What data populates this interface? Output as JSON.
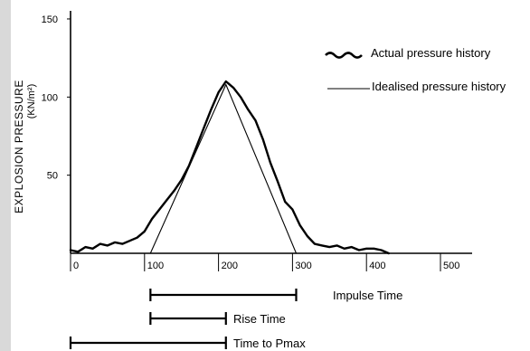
{
  "chart_data": {
    "type": "line",
    "title": "",
    "xlabel": "",
    "ylabel": "EXPLOSION PRESSURE",
    "yunit": "(KN/m²)",
    "xlim": [
      0,
      550
    ],
    "ylim": [
      0,
      150
    ],
    "x_ticks": [
      "0",
      "100",
      "200",
      "300",
      "400",
      "500"
    ],
    "x_tick_values": [
      0,
      100,
      200,
      300,
      400,
      500
    ],
    "y_ticks": [
      "50",
      "100",
      "150"
    ],
    "y_tick_values": [
      50,
      100,
      150
    ],
    "grid": false,
    "legend": "top-right",
    "series": [
      {
        "name": "Actual pressure history",
        "style": "wavy-thick",
        "x": [
          0,
          10,
          20,
          30,
          40,
          50,
          60,
          70,
          80,
          90,
          100,
          110,
          120,
          130,
          140,
          150,
          160,
          170,
          180,
          190,
          200,
          210,
          220,
          230,
          240,
          250,
          260,
          270,
          280,
          290,
          300,
          310,
          320,
          330,
          340,
          350,
          360,
          370,
          380,
          390,
          400,
          410,
          420,
          430
        ],
        "y": [
          2,
          1,
          4,
          3,
          6,
          5,
          7,
          6,
          8,
          10,
          14,
          22,
          28,
          34,
          40,
          47,
          56,
          68,
          80,
          92,
          103,
          110,
          106,
          100,
          92,
          85,
          73,
          58,
          46,
          33,
          28,
          18,
          11,
          6,
          5,
          4,
          5,
          3,
          4,
          2,
          3,
          3,
          2,
          0
        ]
      },
      {
        "name": "Idealised pressure history",
        "style": "thin",
        "x": [
          108,
          210,
          305
        ],
        "y": [
          0,
          108,
          0
        ]
      }
    ],
    "intervals": [
      {
        "label": "Impulse Time",
        "start": 108,
        "end": 305
      },
      {
        "label": "Rise Time",
        "start": 108,
        "end": 210
      },
      {
        "label": "Time to Pmax",
        "start": 0,
        "end": 210
      }
    ]
  }
}
